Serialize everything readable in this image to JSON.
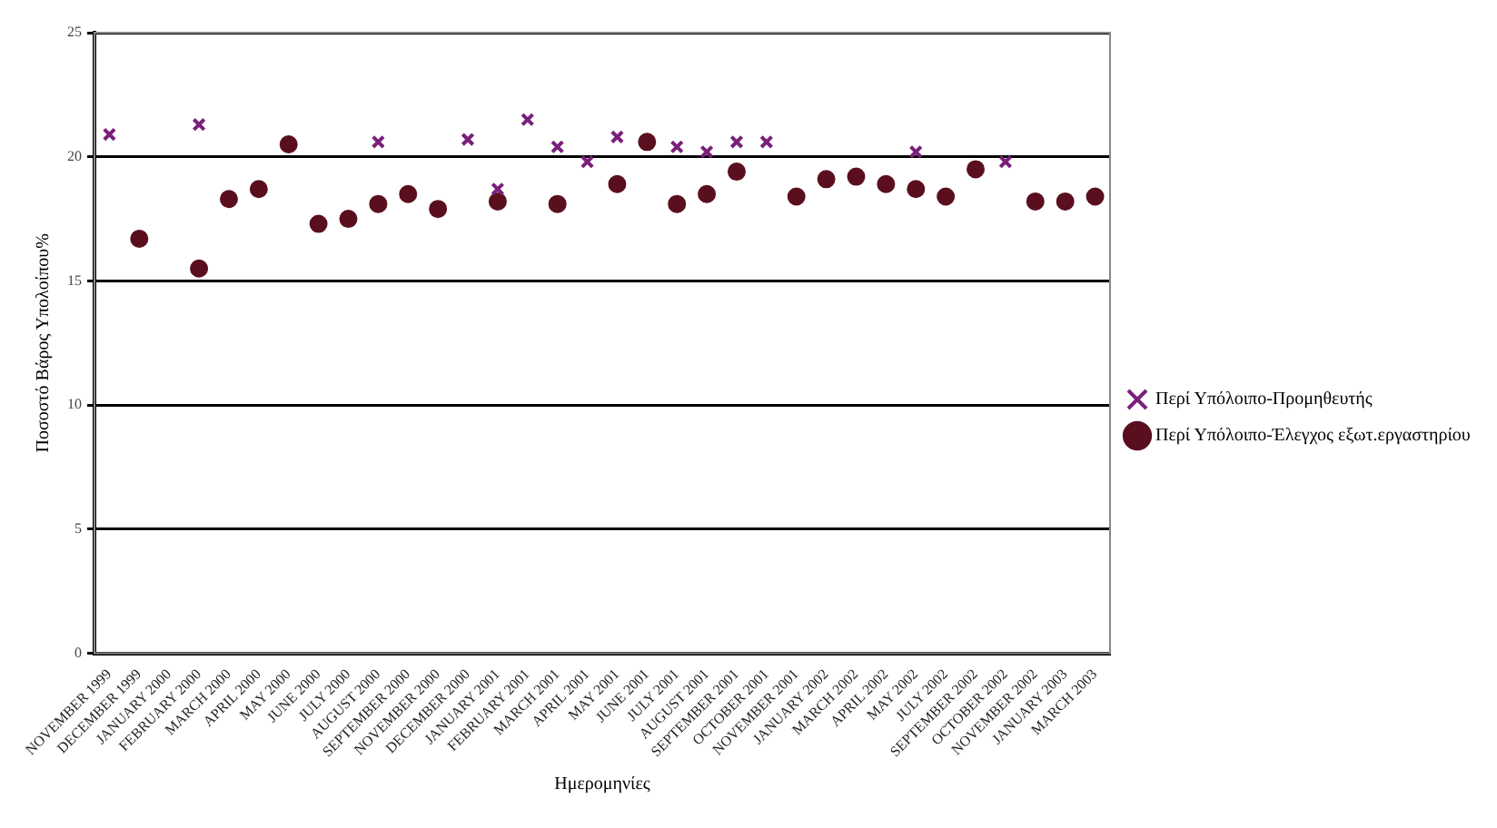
{
  "chart_data": {
    "type": "scatter",
    "xlabel": "Ημερομηνίες",
    "ylabel": "Ποσοστό Βάρος Υπολοίπου%",
    "categories": [
      "NOVEMBER 1999",
      "DECEMBER 1999",
      "JANUARY 2000",
      "FEBRUARY 2000",
      "MARCH 2000",
      "APRIL 2000",
      "MAY 2000",
      "JUNE 2000",
      "JULY 2000",
      "AUGUST 2000",
      "SEPTEMBER 2000",
      "NOVEMBER 2000",
      "DECEMBER 2000",
      "JANUARY 2001",
      "FEBRUARY 2001",
      "MARCH 2001",
      "APRIL 2001",
      "MAY 2001",
      "JUNE 2001",
      "JULY 2001",
      "AUGUST 2001",
      "SEPTEMBER 2001",
      "OCTOBER 2001",
      "NOVEMBER 2001",
      "JANUARY 2002",
      "MARCH 2002",
      "APRIL 2002",
      "MAY 2002",
      "JULY 2002",
      "SEPTEMBER 2002",
      "OCTOBER 2002",
      "NOVEMBER 2002",
      "JANUARY 2003",
      "MARCH 2003"
    ],
    "series": [
      {
        "name": "Περί Υπόλοιπο-Προμηθευτής",
        "color": "#7a1f7a",
        "marker": "cross",
        "values": [
          20.9,
          null,
          null,
          21.3,
          null,
          null,
          null,
          null,
          null,
          20.6,
          null,
          null,
          20.7,
          18.7,
          21.5,
          20.4,
          19.8,
          20.8,
          null,
          20.4,
          20.2,
          20.6,
          20.6,
          null,
          null,
          null,
          null,
          20.2,
          null,
          null,
          19.8,
          null,
          null,
          null
        ]
      },
      {
        "name": "Περί Υπόλοιπο-Έλεγχος εξωτ.εργαστηρίου",
        "color": "#5a0f1e",
        "marker": "circle",
        "values": [
          null,
          16.7,
          null,
          15.5,
          18.3,
          18.7,
          20.5,
          17.3,
          17.5,
          18.1,
          18.5,
          17.9,
          null,
          18.2,
          null,
          18.1,
          null,
          18.9,
          20.6,
          18.1,
          18.5,
          19.4,
          null,
          18.4,
          19.1,
          19.2,
          18.9,
          18.7,
          18.4,
          19.5,
          null,
          18.2,
          18.2,
          18.4
        ]
      }
    ],
    "ylim": [
      0,
      25
    ],
    "yticks": [
      0,
      5,
      10,
      15,
      20,
      25
    ],
    "grid": "y",
    "legend": "right"
  }
}
